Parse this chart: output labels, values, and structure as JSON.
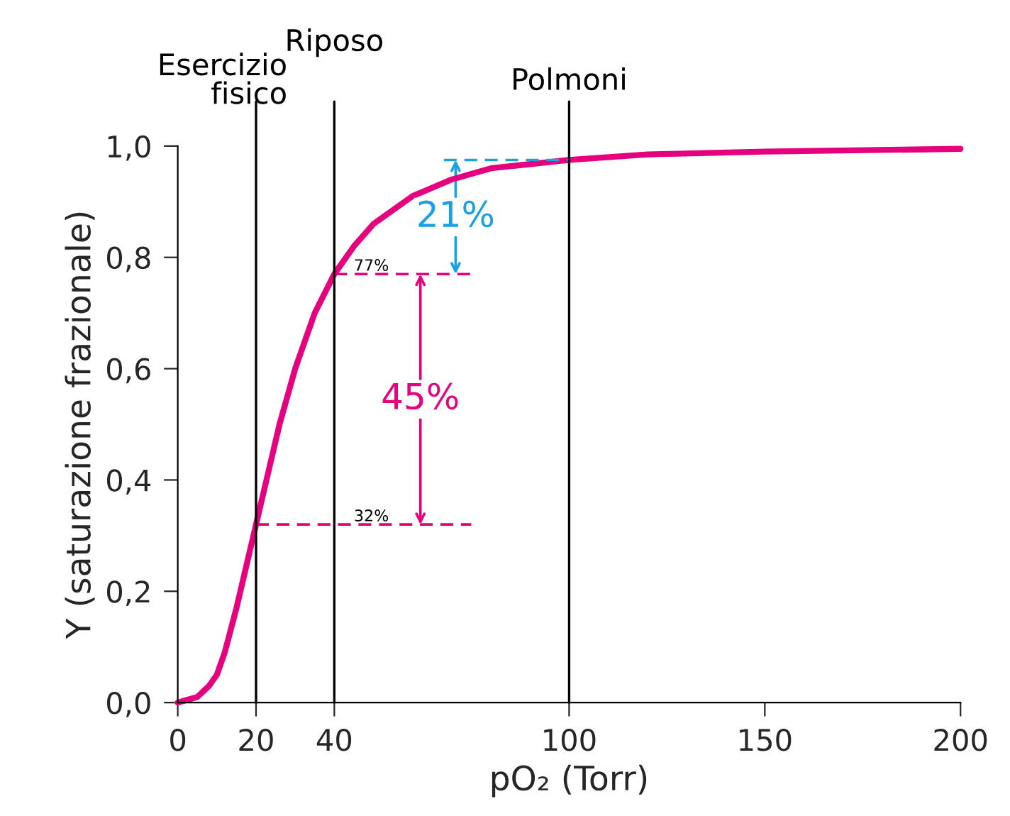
{
  "chart_data": {
    "type": "line",
    "xlabel": "pO₂ (Torr)",
    "ylabel": "Y (saturazione frazionale)",
    "series": [
      {
        "color": "#e5007d",
        "x": [
          0,
          5,
          8,
          10,
          12,
          15,
          18,
          20,
          23,
          26,
          30,
          35,
          40,
          45,
          50,
          60,
          70,
          80,
          100,
          120,
          150,
          200
        ],
        "values": [
          0,
          0.01,
          0.03,
          0.05,
          0.09,
          0.17,
          0.26,
          0.32,
          0.41,
          0.5,
          0.6,
          0.7,
          0.77,
          0.82,
          0.86,
          0.91,
          0.94,
          0.96,
          0.975,
          0.985,
          0.99,
          0.995
        ]
      },
      {
        "color": "#e5007d",
        "x": [
          20,
          75
        ],
        "values": [
          0.32,
          0.32
        ],
        "line_style": "dashed"
      },
      {
        "color": "#e5007d",
        "x": [
          40,
          75
        ],
        "values": [
          0.77,
          0.77
        ],
        "line_style": "dashed"
      },
      {
        "color": "#1ba1e2",
        "x": [
          68,
          100
        ],
        "values": [
          0.975,
          0.975
        ],
        "line_style": "dashed"
      }
    ],
    "xlim": [
      0,
      200
    ],
    "xticks": [
      0,
      20,
      40,
      100,
      150,
      200
    ],
    "ylim": [
      0,
      1.0
    ],
    "yticks": [
      {
        "value": 0,
        "label": "0,0"
      },
      {
        "value": 0.2,
        "label": "0,2"
      },
      {
        "value": 0.4,
        "label": "0,4"
      },
      {
        "value": 0.6,
        "label": "0,6"
      },
      {
        "value": 0.8,
        "label": "0,8"
      },
      {
        "value": 1.0,
        "label": "1,0"
      }
    ],
    "ref_lines": [
      {
        "axis": "x",
        "value": 20,
        "label": "Esercizio\nfisico",
        "color": "#000000"
      },
      {
        "axis": "x",
        "value": 40,
        "label": "Riposo",
        "color": "#000000"
      },
      {
        "axis": "x",
        "value": 100,
        "label": "Polmoni",
        "color": "#000000"
      }
    ],
    "annotations": [
      "21%",
      "45%",
      {
        "text": "77%",
        "x": 45,
        "y": 0.77
      },
      {
        "text": "32%",
        "x": 45,
        "y": 0.32
      }
    ],
    "grid": false,
    "marker": "none",
    "line_style": "solid"
  }
}
